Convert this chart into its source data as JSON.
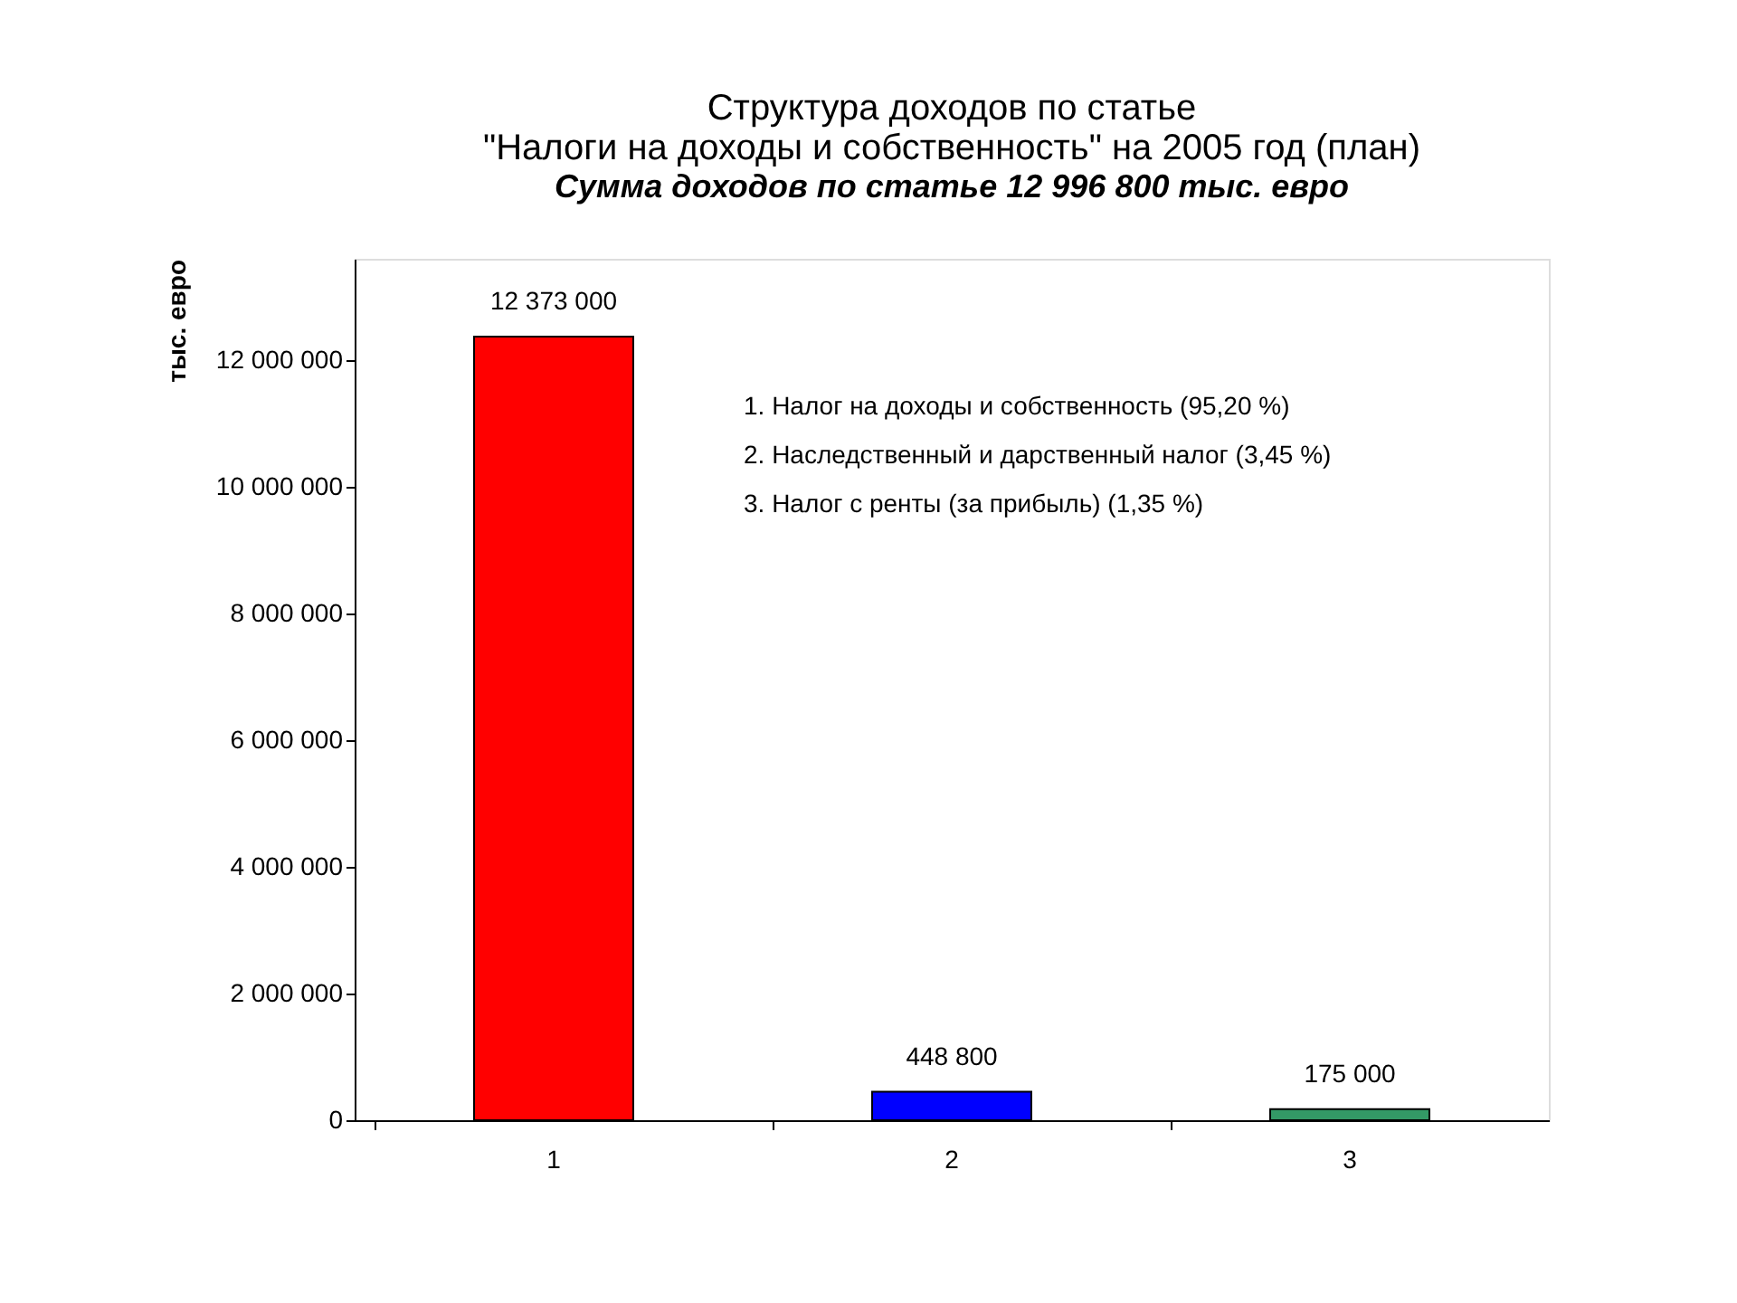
{
  "chart_data": {
    "type": "bar",
    "title": [
      "Структура доходов по статье",
      "\"Налоги на доходы и собственность\" на 2005 год (план)"
    ],
    "subtitle": "Сумма доходов по статье 12 996 800 тыс. евро",
    "ylabel": "тыс. евро",
    "categories": [
      "1",
      "2",
      "3"
    ],
    "values": [
      12373000,
      448800,
      175000
    ],
    "colors": [
      "#ff0000",
      "#0000ff",
      "#339966"
    ],
    "value_labels": [
      "12 373 000",
      "448 800",
      "175 000"
    ],
    "ylim": [
      0,
      13600000
    ],
    "yticks": [
      {
        "value": 0,
        "label": "0"
      },
      {
        "value": 2000000,
        "label": "2 000 000"
      },
      {
        "value": 4000000,
        "label": "4 000 000"
      },
      {
        "value": 6000000,
        "label": "6 000 000"
      },
      {
        "value": 8000000,
        "label": "8 000 000"
      },
      {
        "value": 10000000,
        "label": "10 000 000"
      },
      {
        "value": 12000000,
        "label": "12 000 000"
      }
    ],
    "annotations": [
      "1. Налог на доходы и собственность (95,20 %)",
      "2. Наследственный и дарственный налог (3,45 %)",
      "3. Налог с ренты (за прибыль) (1,35 %)"
    ],
    "grid": false
  }
}
